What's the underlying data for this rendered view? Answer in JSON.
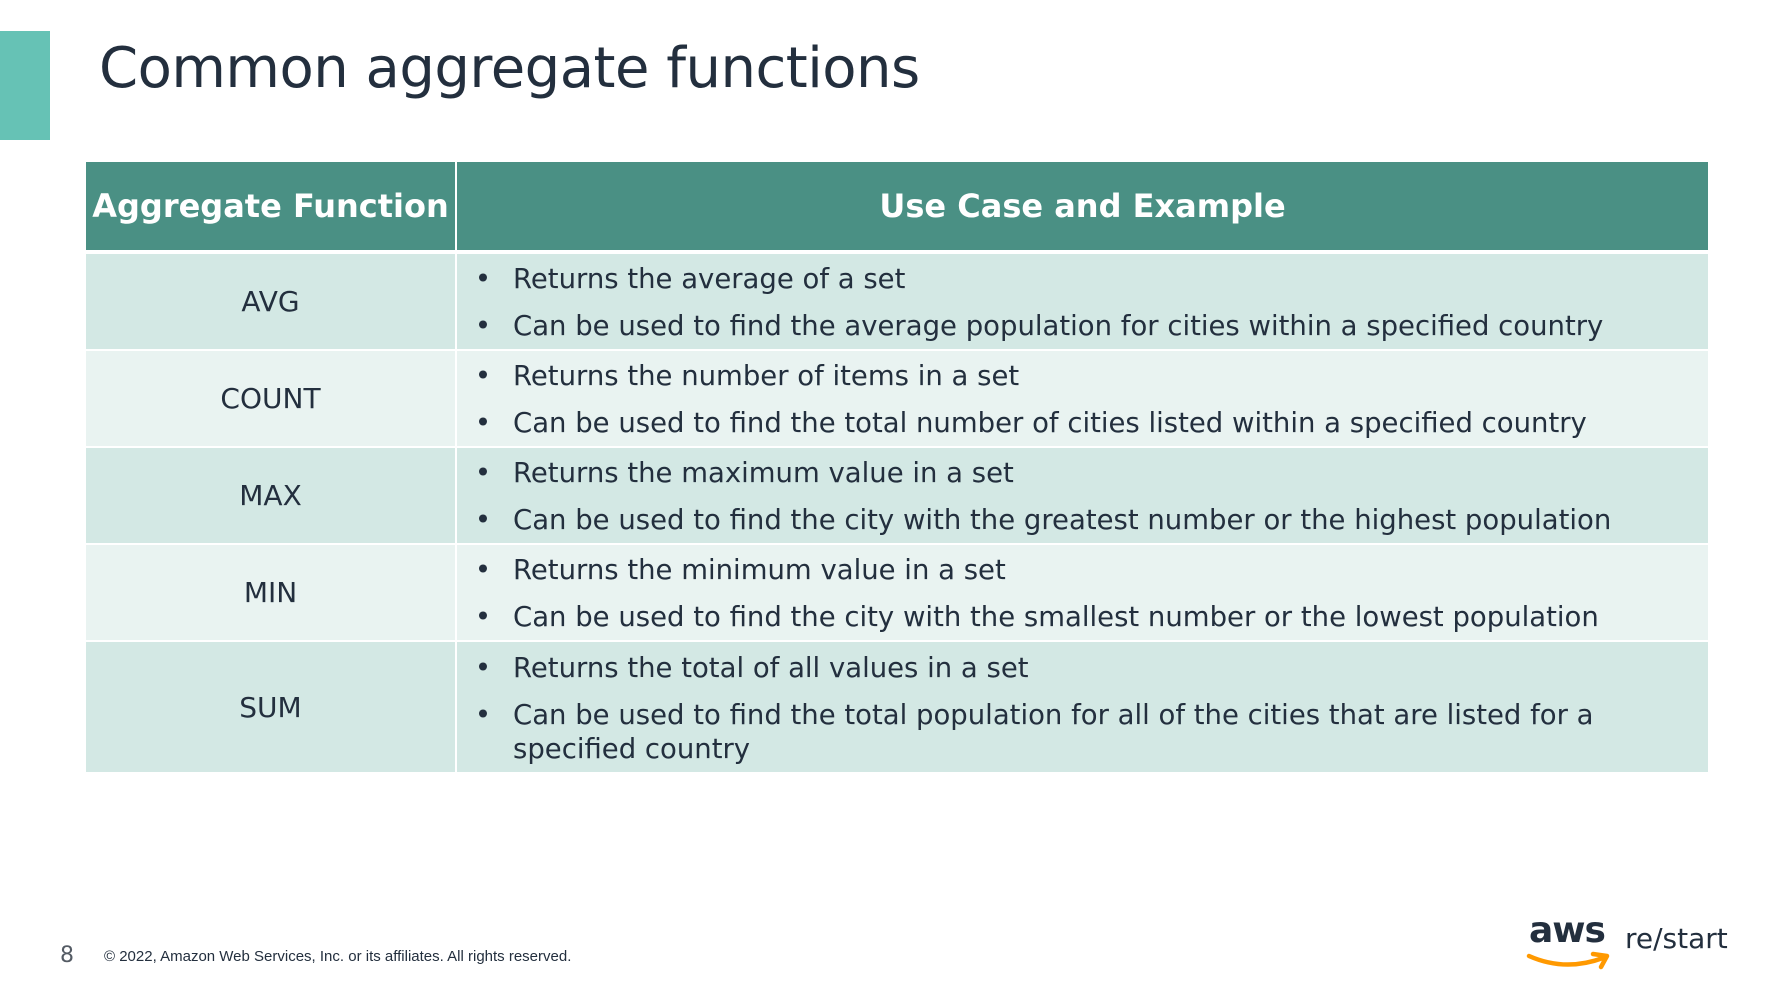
{
  "slide": {
    "title": "Common aggregate functions",
    "page_number": "8",
    "copyright": "© 2022, Amazon Web Services, Inc. or its affiliates. All rights reserved.",
    "accent_color": "#66c2b5",
    "header_color": "#4a9084"
  },
  "table": {
    "headers": [
      "Aggregate Function",
      "Use Case and Example"
    ],
    "rows": [
      {
        "function": "AVG",
        "uses": [
          "Returns the average of a set",
          "Can be used to find the average population for cities within a specified country"
        ]
      },
      {
        "function": "COUNT",
        "uses": [
          "Returns the number of items in a set",
          "Can be used to find the total number of cities listed within a specified country"
        ]
      },
      {
        "function": "MAX",
        "uses": [
          "Returns the maximum value in a set",
          "Can be used to find the city with the greatest number or the highest population"
        ]
      },
      {
        "function": "MIN",
        "uses": [
          "Returns the minimum value in a set",
          "Can be used to find the city with the smallest number or the lowest population"
        ]
      },
      {
        "function": "SUM",
        "uses": [
          "Returns the total of all values in a set",
          "Can be used to find the total population for all of the cities that are listed for a specified country"
        ]
      }
    ]
  },
  "logo": {
    "brand": "aws",
    "product": "re/start",
    "icon": "aws-smile-arrow-icon"
  }
}
